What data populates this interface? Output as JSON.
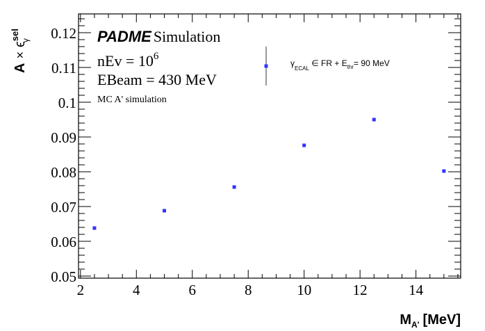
{
  "chart_data": {
    "type": "scatter",
    "title": "",
    "xlabel": "M",
    "xlabel_sub": "A'",
    "xlabel_unit": "[MeV]",
    "ylabel_main": "A",
    "ylabel_times": "×",
    "ylabel_eps": "ϵ",
    "ylabel_sup": "sel",
    "ylabel_sub": "γ",
    "xlim": [
      1.93,
      15.6
    ],
    "ylim": [
      0.0494,
      0.1254
    ],
    "xticks": [
      "2",
      "4",
      "6",
      "8",
      "10",
      "12",
      "14"
    ],
    "yticks": [
      "0.05",
      "0.06",
      "0.07",
      "0.08",
      "0.09",
      "0.1",
      "0.11",
      "0.12"
    ],
    "grid": false,
    "series": [
      {
        "name": "γECAL ∈ FR + Ethr= 90 MeV",
        "color": "#3333ff",
        "x": [
          2.5,
          5,
          7.5,
          10,
          12.5,
          15
        ],
        "y": [
          0.0638,
          0.0688,
          0.0756,
          0.0876,
          0.095,
          0.0802
        ],
        "yerr": [
          0.0003,
          0.0003,
          0.0003,
          0.0003,
          0.0003,
          0.0003
        ]
      }
    ],
    "legend": {
      "placement": "top-center",
      "gamma": "γ",
      "ecal": "ECAL",
      "mid": " ∈ FR + E",
      "thr": "thr",
      "end": "= 90 MeV"
    },
    "annotations": {
      "experiment": "PADME",
      "simulation": "Simulation",
      "nev": "nEv = 10",
      "nev_exp": "6",
      "ebeam": "EBeam = 430 MeV",
      "mc": "MC A' simulation"
    }
  }
}
